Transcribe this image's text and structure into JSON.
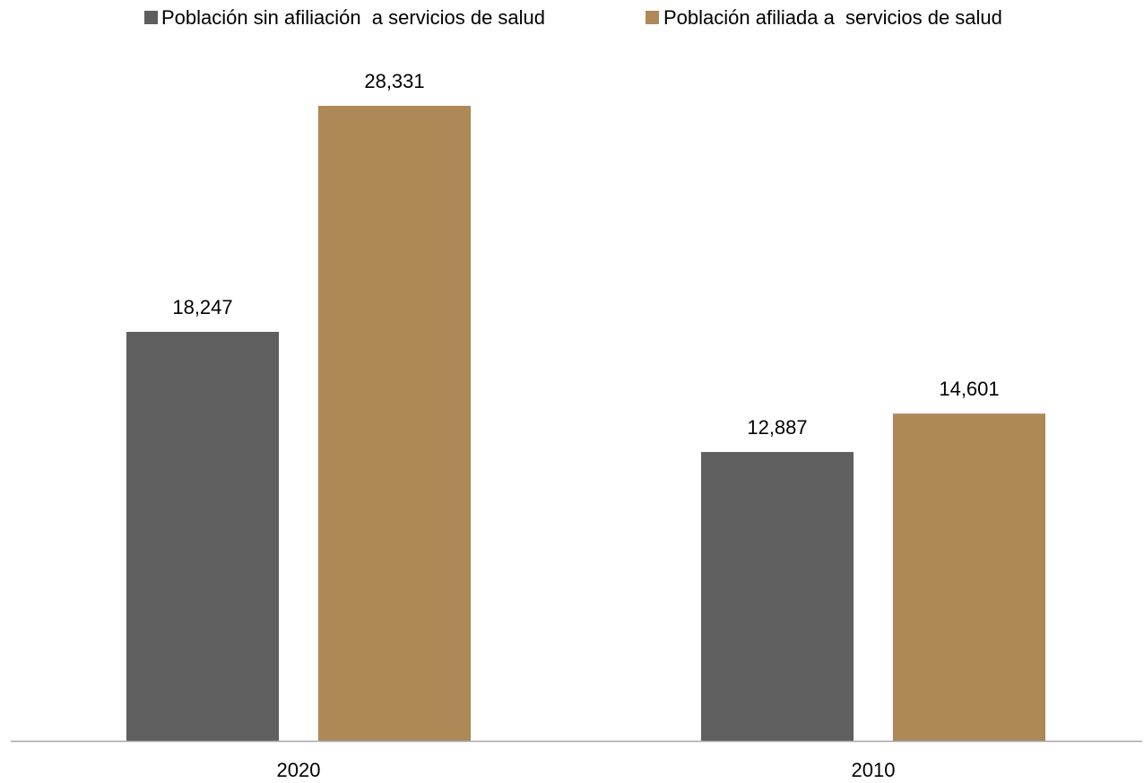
{
  "chart_data": {
    "type": "bar",
    "title": "",
    "xlabel": "",
    "ylabel": "",
    "categories": [
      "2020",
      "2010"
    ],
    "series": [
      {
        "name": "Población sin afiliación  a servicios de salud",
        "color": "#5f5f5f",
        "values": [
          18247,
          12887
        ],
        "labels": [
          "18,247",
          "12,887"
        ]
      },
      {
        "name": "Población afiliada a  servicios de salud",
        "color": "#ae8857",
        "values": [
          28331,
          14601
        ],
        "labels": [
          "28,331",
          "14,601"
        ]
      }
    ],
    "ylim": [
      0,
      30000
    ],
    "grid": false,
    "legend_position": "top"
  },
  "colors": {
    "axis": "#a6a6a6"
  }
}
